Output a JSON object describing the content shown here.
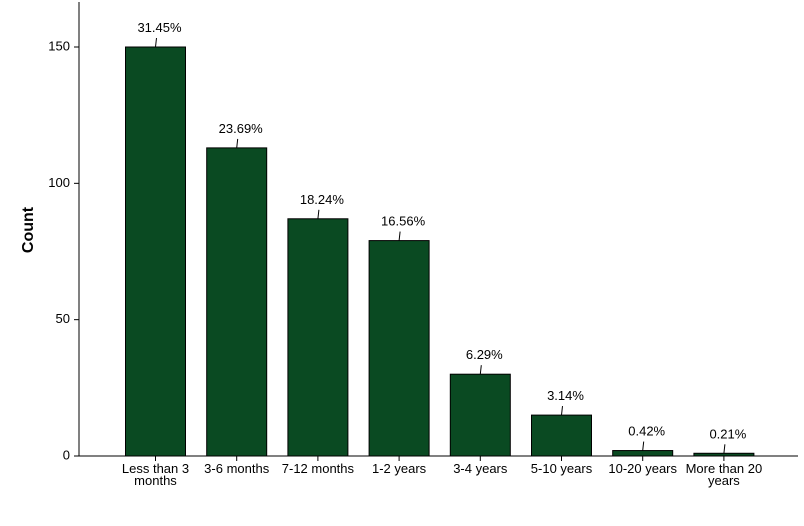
{
  "chart_data": {
    "type": "bar",
    "title": "",
    "xlabel": "",
    "ylabel": "Count",
    "ylim": [
      0,
      165
    ],
    "yticks": [
      0,
      50,
      100,
      150
    ],
    "grid": false,
    "bar_color": "#0a4a22",
    "bar_edge_color": "#000000",
    "categories": [
      [
        "Less than 3",
        "months"
      ],
      [
        "3-6 months"
      ],
      [
        "7-12 months"
      ],
      [
        "1-2 years"
      ],
      [
        "3-4 years"
      ],
      [
        "5-10 years"
      ],
      [
        "10-20 years"
      ],
      [
        "More than 20",
        "years"
      ]
    ],
    "values": [
      150,
      113,
      87,
      79,
      30,
      15,
      2,
      1
    ],
    "data_labels": [
      "31.45%",
      "23.69%",
      "18.24%",
      "16.56%",
      "6.29%",
      "3.14%",
      "0.42%",
      "0.21%"
    ]
  }
}
